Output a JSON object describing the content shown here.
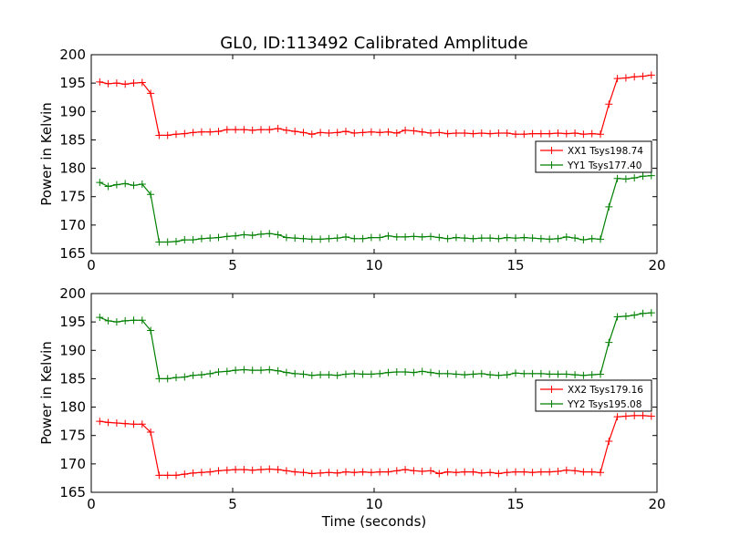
{
  "figure_title": "GL0, ID:113492 Calibrated Amplitude",
  "colors": {
    "red": "#ff0000",
    "green": "#008000"
  },
  "chart_data": [
    {
      "type": "line",
      "title": "GL0, ID:113492 Calibrated Amplitude",
      "xlabel": "",
      "ylabel": "Power in Kelvin",
      "xlim": [
        0,
        20
      ],
      "ylim": [
        165,
        200
      ],
      "xticks": [
        0,
        5,
        10,
        15,
        20
      ],
      "yticks": [
        165,
        170,
        175,
        180,
        185,
        190,
        195,
        200
      ],
      "grid": false,
      "legend_position": "center-right",
      "x": [
        0.3,
        0.6,
        0.9,
        1.2,
        1.5,
        1.8,
        2.1,
        2.4,
        2.7,
        3.0,
        3.3,
        3.6,
        3.9,
        4.2,
        4.5,
        4.8,
        5.1,
        5.4,
        5.7,
        6.0,
        6.3,
        6.6,
        6.9,
        7.2,
        7.5,
        7.8,
        8.1,
        8.4,
        8.7,
        9.0,
        9.3,
        9.6,
        9.9,
        10.2,
        10.5,
        10.8,
        11.1,
        11.4,
        11.7,
        12.0,
        12.3,
        12.6,
        12.9,
        13.2,
        13.5,
        13.8,
        14.1,
        14.4,
        14.7,
        15.0,
        15.3,
        15.6,
        15.9,
        16.2,
        16.5,
        16.8,
        17.1,
        17.4,
        17.7,
        18.0,
        18.3,
        18.6,
        18.9,
        19.2,
        19.5,
        19.8
      ],
      "series": [
        {
          "name": "XX1 Tsys198.74",
          "color": "#ff0000",
          "values": [
            195.2,
            194.9,
            195.0,
            194.8,
            195.0,
            195.1,
            193.2,
            185.8,
            185.8,
            186.0,
            186.1,
            186.3,
            186.4,
            186.4,
            186.5,
            186.8,
            186.8,
            186.8,
            186.7,
            186.8,
            186.8,
            187.0,
            186.7,
            186.5,
            186.3,
            186.0,
            186.3,
            186.2,
            186.3,
            186.5,
            186.2,
            186.3,
            186.4,
            186.3,
            186.4,
            186.2,
            186.7,
            186.6,
            186.4,
            186.2,
            186.3,
            186.1,
            186.2,
            186.2,
            186.1,
            186.2,
            186.1,
            186.2,
            186.2,
            186.0,
            186.0,
            186.1,
            186.1,
            186.1,
            186.2,
            186.1,
            186.2,
            186.0,
            186.1,
            186.0,
            191.3,
            195.8,
            195.9,
            196.1,
            196.2,
            196.4
          ]
        },
        {
          "name": "YY1 Tsys177.40",
          "color": "#008000",
          "values": [
            177.5,
            176.8,
            177.1,
            177.3,
            177.0,
            177.2,
            175.4,
            167.0,
            167.0,
            167.1,
            167.4,
            167.4,
            167.6,
            167.7,
            167.8,
            168.0,
            168.1,
            168.3,
            168.2,
            168.4,
            168.5,
            168.3,
            167.8,
            167.7,
            167.6,
            167.5,
            167.5,
            167.6,
            167.7,
            167.9,
            167.6,
            167.6,
            167.8,
            167.8,
            168.1,
            167.9,
            167.9,
            168.0,
            167.9,
            168.0,
            167.8,
            167.6,
            167.8,
            167.7,
            167.6,
            167.7,
            167.7,
            167.6,
            167.8,
            167.7,
            167.8,
            167.7,
            167.6,
            167.5,
            167.6,
            167.9,
            167.7,
            167.4,
            167.6,
            167.5,
            173.2,
            178.2,
            178.1,
            178.3,
            178.6,
            178.7
          ]
        }
      ]
    },
    {
      "type": "line",
      "title": "",
      "xlabel": "Time (seconds)",
      "ylabel": "Power in Kelvin",
      "xlim": [
        0,
        20
      ],
      "ylim": [
        165,
        200
      ],
      "xticks": [
        0,
        5,
        10,
        15,
        20
      ],
      "yticks": [
        165,
        170,
        175,
        180,
        185,
        190,
        195,
        200
      ],
      "grid": false,
      "legend_position": "center-right",
      "x": [
        0.3,
        0.6,
        0.9,
        1.2,
        1.5,
        1.8,
        2.1,
        2.4,
        2.7,
        3.0,
        3.3,
        3.6,
        3.9,
        4.2,
        4.5,
        4.8,
        5.1,
        5.4,
        5.7,
        6.0,
        6.3,
        6.6,
        6.9,
        7.2,
        7.5,
        7.8,
        8.1,
        8.4,
        8.7,
        9.0,
        9.3,
        9.6,
        9.9,
        10.2,
        10.5,
        10.8,
        11.1,
        11.4,
        11.7,
        12.0,
        12.3,
        12.6,
        12.9,
        13.2,
        13.5,
        13.8,
        14.1,
        14.4,
        14.7,
        15.0,
        15.3,
        15.6,
        15.9,
        16.2,
        16.5,
        16.8,
        17.1,
        17.4,
        17.7,
        18.0,
        18.3,
        18.6,
        18.9,
        19.2,
        19.5,
        19.8
      ],
      "series": [
        {
          "name": "XX2 Tsys179.16",
          "color": "#ff0000",
          "values": [
            177.5,
            177.3,
            177.2,
            177.1,
            177.0,
            177.0,
            175.6,
            168.0,
            168.0,
            168.0,
            168.2,
            168.4,
            168.5,
            168.6,
            168.8,
            168.9,
            169.0,
            169.0,
            168.9,
            169.0,
            169.1,
            169.0,
            168.8,
            168.6,
            168.5,
            168.3,
            168.4,
            168.5,
            168.4,
            168.6,
            168.5,
            168.6,
            168.5,
            168.6,
            168.6,
            168.8,
            169.0,
            168.8,
            168.7,
            168.8,
            168.3,
            168.6,
            168.5,
            168.6,
            168.6,
            168.4,
            168.5,
            168.3,
            168.5,
            168.6,
            168.6,
            168.5,
            168.6,
            168.6,
            168.7,
            168.9,
            168.8,
            168.6,
            168.6,
            168.5,
            174.0,
            178.3,
            178.4,
            178.5,
            178.5,
            178.4
          ]
        },
        {
          "name": "YY2 Tsys195.08",
          "color": "#008000",
          "values": [
            195.8,
            195.2,
            195.0,
            195.2,
            195.3,
            195.3,
            193.5,
            185.0,
            185.0,
            185.2,
            185.3,
            185.6,
            185.7,
            185.9,
            186.2,
            186.3,
            186.5,
            186.6,
            186.5,
            186.5,
            186.6,
            186.4,
            186.1,
            185.9,
            185.8,
            185.6,
            185.7,
            185.7,
            185.6,
            185.8,
            185.9,
            185.8,
            185.8,
            185.9,
            186.1,
            186.2,
            186.2,
            186.1,
            186.3,
            186.1,
            185.9,
            185.9,
            185.8,
            185.7,
            185.8,
            185.9,
            185.7,
            185.6,
            185.7,
            186.0,
            185.9,
            185.9,
            185.9,
            185.8,
            185.8,
            185.8,
            185.7,
            185.6,
            185.7,
            185.8,
            191.4,
            195.9,
            196.0,
            196.2,
            196.5,
            196.6
          ]
        }
      ]
    }
  ]
}
